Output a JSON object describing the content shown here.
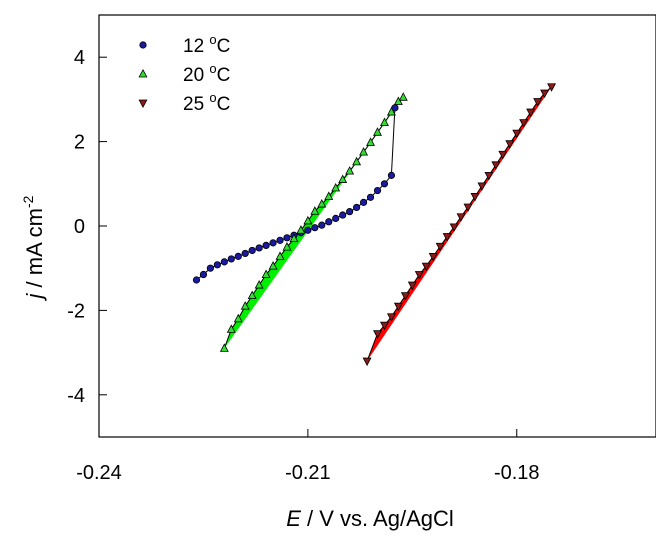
{
  "chart_data": {
    "type": "scatter",
    "xlabel": {
      "italic": "E",
      "rest": " / V vs. Ag/AgCl"
    },
    "ylabel": {
      "italic": "j",
      "rest": " / mA cm",
      "sup": "-2"
    },
    "xlim": [
      -0.24,
      -0.16
    ],
    "ylim": [
      -5,
      5
    ],
    "xticks": [
      -0.24,
      -0.21,
      -0.18
    ],
    "xtick_labels": [
      "-0.24",
      "-0.21",
      "-0.18"
    ],
    "yticks": [
      -4,
      -2,
      0,
      2,
      4
    ],
    "ytick_labels": [
      "-4",
      "-2",
      "0",
      "2",
      "4"
    ],
    "grid": false,
    "legend_position": "top-left",
    "series": [
      {
        "name": "12 °C",
        "legend": {
          "num": "12 ",
          "sup": "o",
          "unit": "C"
        },
        "color": "#1a1aa0",
        "edge": "#000000",
        "marker": "circle",
        "fill_color": null,
        "points": [
          [
            -0.226,
            -1.28
          ],
          [
            -0.225,
            -1.15
          ],
          [
            -0.224,
            -1.0
          ],
          [
            -0.223,
            -0.92
          ],
          [
            -0.222,
            -0.85
          ],
          [
            -0.221,
            -0.78
          ],
          [
            -0.22,
            -0.72
          ],
          [
            -0.219,
            -0.65
          ],
          [
            -0.218,
            -0.58
          ],
          [
            -0.217,
            -0.52
          ],
          [
            -0.216,
            -0.46
          ],
          [
            -0.215,
            -0.4
          ],
          [
            -0.214,
            -0.34
          ],
          [
            -0.213,
            -0.28
          ],
          [
            -0.212,
            -0.22
          ],
          [
            -0.211,
            -0.16
          ],
          [
            -0.21,
            -0.1
          ],
          [
            -0.209,
            -0.04
          ],
          [
            -0.208,
            0.02
          ],
          [
            -0.207,
            0.1
          ],
          [
            -0.206,
            0.18
          ],
          [
            -0.205,
            0.26
          ],
          [
            -0.204,
            0.34
          ],
          [
            -0.203,
            0.44
          ],
          [
            -0.202,
            0.56
          ],
          [
            -0.201,
            0.68
          ],
          [
            -0.2,
            0.84
          ],
          [
            -0.199,
            1.0
          ],
          [
            -0.198,
            1.2
          ],
          [
            -0.1975,
            2.8
          ]
        ]
      },
      {
        "name": "20 °C",
        "legend": {
          "num": "20 ",
          "sup": "o",
          "unit": "C"
        },
        "color": "#33dd33",
        "edge": "#000000",
        "marker": "triangle-up",
        "fill_color": "#00ee00",
        "points": [
          [
            -0.222,
            -2.9
          ],
          [
            -0.221,
            -2.45
          ],
          [
            -0.22,
            -2.2
          ],
          [
            -0.219,
            -1.9
          ],
          [
            -0.218,
            -1.65
          ],
          [
            -0.217,
            -1.4
          ],
          [
            -0.216,
            -1.15
          ],
          [
            -0.215,
            -0.95
          ],
          [
            -0.214,
            -0.72
          ],
          [
            -0.213,
            -0.5
          ],
          [
            -0.212,
            -0.3
          ],
          [
            -0.211,
            -0.1
          ],
          [
            -0.21,
            0.12
          ],
          [
            -0.209,
            0.35
          ],
          [
            -0.208,
            0.52
          ],
          [
            -0.207,
            0.7
          ],
          [
            -0.206,
            0.9
          ],
          [
            -0.205,
            1.1
          ],
          [
            -0.204,
            1.3
          ],
          [
            -0.203,
            1.52
          ],
          [
            -0.202,
            1.75
          ],
          [
            -0.201,
            1.98
          ],
          [
            -0.2,
            2.22
          ],
          [
            -0.199,
            2.45
          ],
          [
            -0.198,
            2.7
          ],
          [
            -0.197,
            2.95
          ],
          [
            -0.1963,
            3.05
          ]
        ]
      },
      {
        "name": "25 °C",
        "legend": {
          "num": "25 ",
          "sup": "o",
          "unit": "C"
        },
        "color": "#8b1a1a",
        "edge": "#000000",
        "marker": "triangle-down",
        "fill_color": "#ff0000",
        "points": [
          [
            -0.2015,
            -3.2
          ],
          [
            -0.2,
            -2.55
          ],
          [
            -0.199,
            -2.35
          ],
          [
            -0.198,
            -2.15
          ],
          [
            -0.197,
            -1.9
          ],
          [
            -0.196,
            -1.65
          ],
          [
            -0.195,
            -1.4
          ],
          [
            -0.194,
            -1.15
          ],
          [
            -0.193,
            -0.95
          ],
          [
            -0.192,
            -0.72
          ],
          [
            -0.191,
            -0.48
          ],
          [
            -0.19,
            -0.25
          ],
          [
            -0.189,
            -0.02
          ],
          [
            -0.188,
            0.22
          ],
          [
            -0.187,
            0.45
          ],
          [
            -0.186,
            0.7
          ],
          [
            -0.185,
            0.95
          ],
          [
            -0.184,
            1.2
          ],
          [
            -0.183,
            1.45
          ],
          [
            -0.182,
            1.7
          ],
          [
            -0.181,
            1.95
          ],
          [
            -0.18,
            2.2
          ],
          [
            -0.179,
            2.45
          ],
          [
            -0.178,
            2.7
          ],
          [
            -0.177,
            2.95
          ],
          [
            -0.176,
            3.15
          ],
          [
            -0.175,
            3.3
          ]
        ]
      }
    ]
  }
}
